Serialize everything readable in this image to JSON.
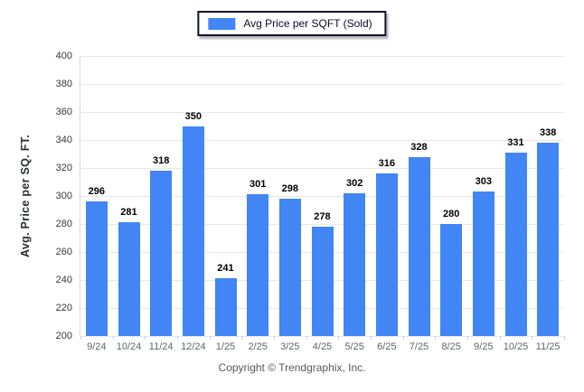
{
  "legend": {
    "label": "Avg Price per SQFT (Sold)",
    "swatch_color": "#4285F4"
  },
  "chart_data": {
    "type": "bar",
    "title": "",
    "xlabel": "",
    "ylabel": "Avg. Price per SQ. FT.",
    "categories": [
      "9/24",
      "10/24",
      "11/24",
      "12/24",
      "1/25",
      "2/25",
      "3/25",
      "4/25",
      "5/25",
      "6/25",
      "7/25",
      "8/25",
      "9/25",
      "10/25",
      "11/25"
    ],
    "values": [
      296,
      281,
      318,
      350,
      241,
      301,
      298,
      278,
      302,
      316,
      328,
      280,
      303,
      331,
      338
    ],
    "ylim": [
      200,
      400
    ],
    "yticks": [
      400,
      380,
      360,
      340,
      320,
      300,
      280,
      260,
      240,
      220,
      200
    ],
    "grid": "horizontal",
    "legend_entries": [
      "Avg Price per SQFT (Sold)"
    ],
    "legend_position": "top-center",
    "bar_color": "#4285F4",
    "value_labels": true
  },
  "footer": {
    "copyright": "Copyright © Trendgraphix, Inc."
  }
}
